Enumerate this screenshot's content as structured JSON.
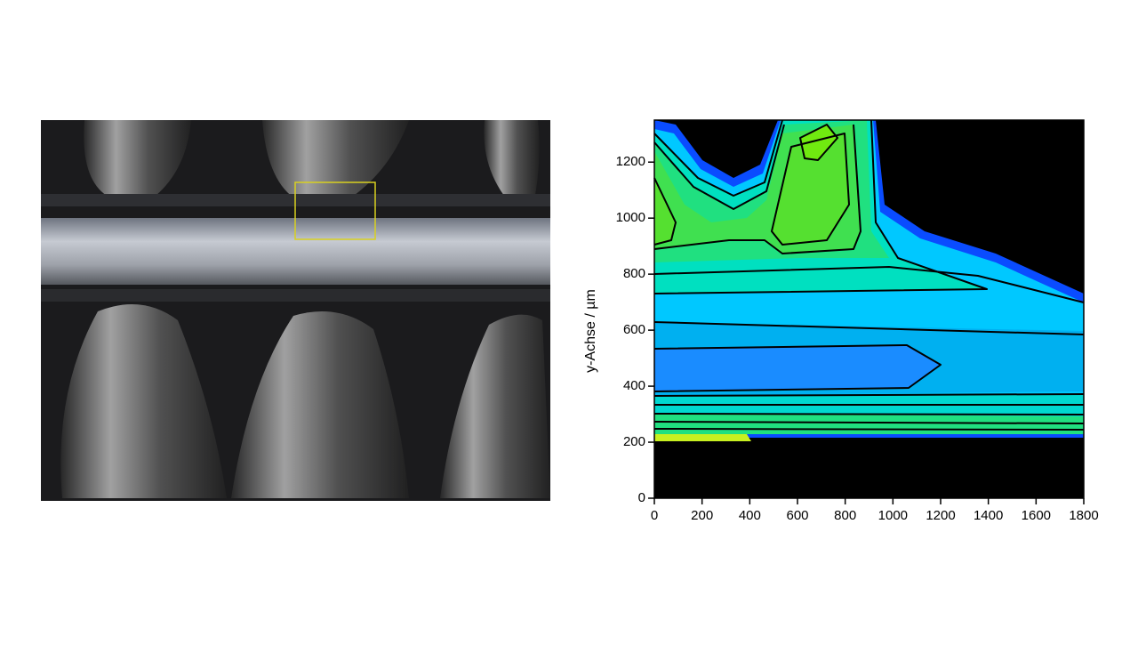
{
  "chart_data": {
    "type": "contour",
    "ylabel": "y-Achse / µm",
    "xlim": [
      0,
      1800
    ],
    "xticks": [
      0,
      200,
      400,
      600,
      800,
      1000,
      1200,
      1400,
      1600,
      1800
    ],
    "ylim": [
      0,
      1350
    ],
    "yticks": [
      0,
      200,
      400,
      600,
      800,
      1000,
      1200
    ]
  }
}
